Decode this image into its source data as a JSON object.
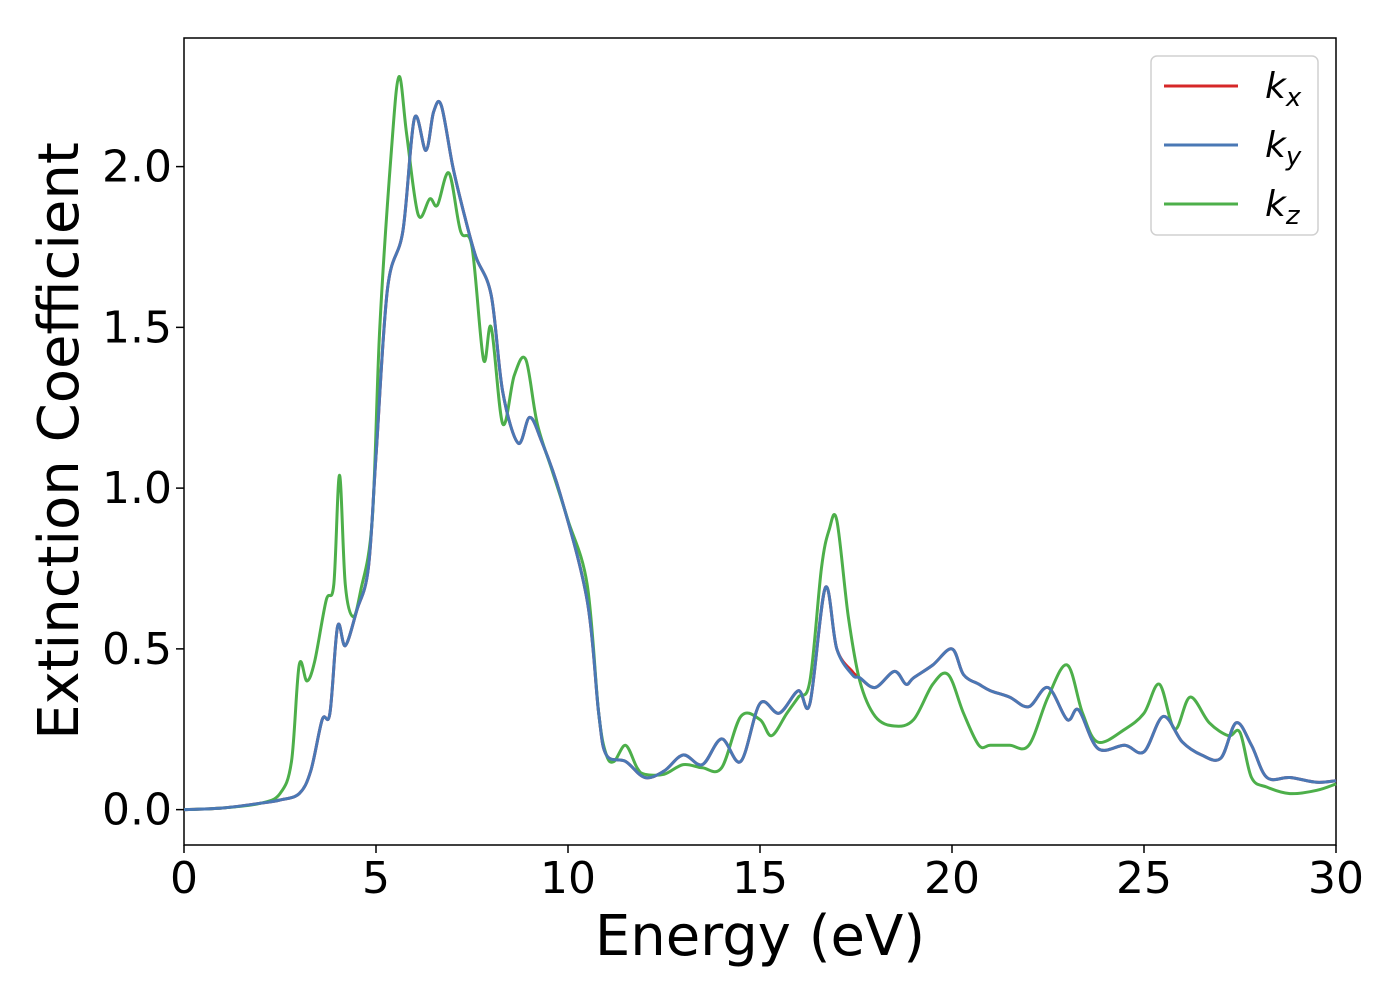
{
  "chart_data": {
    "type": "line",
    "xlabel": "Energy (eV)",
    "ylabel": "Extinction Coefficient",
    "xlim": [
      0,
      30
    ],
    "ylim": [
      -0.11,
      2.4
    ],
    "xticks": [
      0,
      5,
      10,
      15,
      20,
      25,
      30
    ],
    "xtick_labels": [
      "0",
      "5",
      "10",
      "15",
      "20",
      "25",
      "30"
    ],
    "yticks": [
      0.0,
      0.5,
      1.0,
      1.5,
      2.0
    ],
    "ytick_labels": [
      "0.0",
      "0.5",
      "1.0",
      "1.5",
      "2.0"
    ],
    "grid": false,
    "legend_position": "top-right",
    "series": [
      {
        "name": "k",
        "subscript": "x",
        "color": "#d62728",
        "points": [
          [
            0,
            0
          ],
          [
            1,
            0.005
          ],
          [
            2,
            0.02
          ],
          [
            2.5,
            0.03
          ],
          [
            3,
            0.05
          ],
          [
            3.3,
            0.12
          ],
          [
            3.6,
            0.28
          ],
          [
            3.8,
            0.3
          ],
          [
            4.0,
            0.57
          ],
          [
            4.2,
            0.51
          ],
          [
            4.5,
            0.62
          ],
          [
            4.8,
            0.75
          ],
          [
            5.0,
            1.1
          ],
          [
            5.3,
            1.62
          ],
          [
            5.7,
            1.8
          ],
          [
            6.0,
            2.15
          ],
          [
            6.3,
            2.05
          ],
          [
            6.5,
            2.17
          ],
          [
            6.7,
            2.19
          ],
          [
            7.0,
            2.0
          ],
          [
            7.3,
            1.85
          ],
          [
            7.6,
            1.72
          ],
          [
            8.0,
            1.6
          ],
          [
            8.3,
            1.3
          ],
          [
            8.7,
            1.14
          ],
          [
            9.0,
            1.22
          ],
          [
            9.3,
            1.15
          ],
          [
            9.8,
            0.98
          ],
          [
            10.5,
            0.65
          ],
          [
            10.8,
            0.3
          ],
          [
            11.0,
            0.17
          ],
          [
            11.5,
            0.15
          ],
          [
            12.0,
            0.1
          ],
          [
            12.5,
            0.12
          ],
          [
            13.0,
            0.17
          ],
          [
            13.5,
            0.14
          ],
          [
            14.0,
            0.22
          ],
          [
            14.5,
            0.15
          ],
          [
            15.0,
            0.33
          ],
          [
            15.5,
            0.3
          ],
          [
            16.0,
            0.37
          ],
          [
            16.3,
            0.33
          ],
          [
            16.7,
            0.69
          ],
          [
            17.0,
            0.5
          ],
          [
            17.4,
            0.43
          ],
          [
            17.6,
            0.41
          ],
          [
            18.0,
            0.38
          ],
          [
            18.5,
            0.43
          ],
          [
            18.8,
            0.39
          ],
          [
            19.0,
            0.41
          ],
          [
            19.5,
            0.45
          ],
          [
            20.0,
            0.5
          ],
          [
            20.3,
            0.42
          ],
          [
            20.7,
            0.39
          ],
          [
            21.0,
            0.37
          ],
          [
            21.5,
            0.35
          ],
          [
            22.0,
            0.32
          ],
          [
            22.5,
            0.38
          ],
          [
            23.0,
            0.28
          ],
          [
            23.3,
            0.31
          ],
          [
            23.8,
            0.19
          ],
          [
            24.5,
            0.2
          ],
          [
            25.0,
            0.18
          ],
          [
            25.5,
            0.29
          ],
          [
            26.0,
            0.21
          ],
          [
            26.5,
            0.17
          ],
          [
            27.0,
            0.16
          ],
          [
            27.4,
            0.27
          ],
          [
            27.8,
            0.2
          ],
          [
            28.2,
            0.1
          ],
          [
            28.8,
            0.1
          ],
          [
            29.5,
            0.085
          ],
          [
            30,
            0.09
          ]
        ]
      },
      {
        "name": "k",
        "subscript": "y",
        "color": "#4a78b5",
        "points": [
          [
            0,
            0
          ],
          [
            1,
            0.005
          ],
          [
            2,
            0.02
          ],
          [
            2.5,
            0.03
          ],
          [
            3,
            0.05
          ],
          [
            3.3,
            0.12
          ],
          [
            3.6,
            0.28
          ],
          [
            3.8,
            0.3
          ],
          [
            4.0,
            0.57
          ],
          [
            4.2,
            0.51
          ],
          [
            4.5,
            0.62
          ],
          [
            4.8,
            0.75
          ],
          [
            5.0,
            1.1
          ],
          [
            5.3,
            1.62
          ],
          [
            5.7,
            1.8
          ],
          [
            6.0,
            2.15
          ],
          [
            6.3,
            2.05
          ],
          [
            6.5,
            2.17
          ],
          [
            6.7,
            2.19
          ],
          [
            7.0,
            2.0
          ],
          [
            7.3,
            1.85
          ],
          [
            7.6,
            1.72
          ],
          [
            8.0,
            1.6
          ],
          [
            8.3,
            1.3
          ],
          [
            8.7,
            1.14
          ],
          [
            9.0,
            1.22
          ],
          [
            9.3,
            1.15
          ],
          [
            9.8,
            0.98
          ],
          [
            10.5,
            0.65
          ],
          [
            10.8,
            0.3
          ],
          [
            11.0,
            0.17
          ],
          [
            11.5,
            0.15
          ],
          [
            12.0,
            0.1
          ],
          [
            12.5,
            0.12
          ],
          [
            13.0,
            0.17
          ],
          [
            13.5,
            0.14
          ],
          [
            14.0,
            0.22
          ],
          [
            14.5,
            0.15
          ],
          [
            15.0,
            0.33
          ],
          [
            15.5,
            0.3
          ],
          [
            16.0,
            0.37
          ],
          [
            16.3,
            0.33
          ],
          [
            16.7,
            0.69
          ],
          [
            17.0,
            0.5
          ],
          [
            17.4,
            0.42
          ],
          [
            17.6,
            0.41
          ],
          [
            18.0,
            0.38
          ],
          [
            18.5,
            0.43
          ],
          [
            18.8,
            0.39
          ],
          [
            19.0,
            0.41
          ],
          [
            19.5,
            0.45
          ],
          [
            20.0,
            0.5
          ],
          [
            20.3,
            0.42
          ],
          [
            20.7,
            0.39
          ],
          [
            21.0,
            0.37
          ],
          [
            21.5,
            0.35
          ],
          [
            22.0,
            0.32
          ],
          [
            22.5,
            0.38
          ],
          [
            23.0,
            0.28
          ],
          [
            23.3,
            0.31
          ],
          [
            23.8,
            0.19
          ],
          [
            24.5,
            0.2
          ],
          [
            25.0,
            0.18
          ],
          [
            25.5,
            0.29
          ],
          [
            26.0,
            0.21
          ],
          [
            26.5,
            0.17
          ],
          [
            27.0,
            0.16
          ],
          [
            27.4,
            0.27
          ],
          [
            27.8,
            0.2
          ],
          [
            28.2,
            0.1
          ],
          [
            28.8,
            0.1
          ],
          [
            29.5,
            0.085
          ],
          [
            30,
            0.09
          ]
        ]
      },
      {
        "name": "k",
        "subscript": "z",
        "color": "#4daf4a",
        "points": [
          [
            0,
            0
          ],
          [
            1,
            0.005
          ],
          [
            2,
            0.02
          ],
          [
            2.5,
            0.05
          ],
          [
            2.8,
            0.15
          ],
          [
            3.0,
            0.45
          ],
          [
            3.2,
            0.4
          ],
          [
            3.4,
            0.46
          ],
          [
            3.7,
            0.65
          ],
          [
            3.9,
            0.7
          ],
          [
            4.05,
            1.04
          ],
          [
            4.2,
            0.7
          ],
          [
            4.4,
            0.6
          ],
          [
            4.6,
            0.68
          ],
          [
            4.9,
            0.9
          ],
          [
            5.1,
            1.5
          ],
          [
            5.4,
            2.05
          ],
          [
            5.6,
            2.28
          ],
          [
            5.8,
            2.1
          ],
          [
            6.1,
            1.85
          ],
          [
            6.4,
            1.9
          ],
          [
            6.6,
            1.88
          ],
          [
            6.9,
            1.98
          ],
          [
            7.2,
            1.8
          ],
          [
            7.5,
            1.75
          ],
          [
            7.8,
            1.4
          ],
          [
            8.0,
            1.5
          ],
          [
            8.3,
            1.2
          ],
          [
            8.6,
            1.35
          ],
          [
            8.9,
            1.4
          ],
          [
            9.2,
            1.2
          ],
          [
            9.6,
            1.05
          ],
          [
            10.0,
            0.9
          ],
          [
            10.5,
            0.7
          ],
          [
            10.8,
            0.3
          ],
          [
            11.0,
            0.17
          ],
          [
            11.2,
            0.15
          ],
          [
            11.5,
            0.2
          ],
          [
            11.8,
            0.13
          ],
          [
            12.0,
            0.11
          ],
          [
            12.5,
            0.11
          ],
          [
            13.0,
            0.14
          ],
          [
            13.5,
            0.13
          ],
          [
            14.0,
            0.13
          ],
          [
            14.5,
            0.29
          ],
          [
            15.0,
            0.28
          ],
          [
            15.3,
            0.23
          ],
          [
            15.7,
            0.3
          ],
          [
            16.0,
            0.35
          ],
          [
            16.3,
            0.4
          ],
          [
            16.6,
            0.75
          ],
          [
            16.8,
            0.87
          ],
          [
            17.0,
            0.9
          ],
          [
            17.3,
            0.6
          ],
          [
            17.6,
            0.4
          ],
          [
            18.0,
            0.29
          ],
          [
            18.5,
            0.26
          ],
          [
            19.0,
            0.28
          ],
          [
            19.5,
            0.39
          ],
          [
            19.9,
            0.42
          ],
          [
            20.3,
            0.3
          ],
          [
            20.7,
            0.2
          ],
          [
            21.0,
            0.2
          ],
          [
            21.5,
            0.2
          ],
          [
            22.0,
            0.2
          ],
          [
            22.5,
            0.35
          ],
          [
            23.0,
            0.45
          ],
          [
            23.4,
            0.3
          ],
          [
            23.8,
            0.21
          ],
          [
            24.5,
            0.25
          ],
          [
            25.0,
            0.3
          ],
          [
            25.4,
            0.39
          ],
          [
            25.8,
            0.25
          ],
          [
            26.2,
            0.35
          ],
          [
            26.7,
            0.27
          ],
          [
            27.2,
            0.23
          ],
          [
            27.5,
            0.24
          ],
          [
            27.8,
            0.1
          ],
          [
            28.2,
            0.07
          ],
          [
            28.8,
            0.05
          ],
          [
            29.5,
            0.06
          ],
          [
            30,
            0.08
          ]
        ]
      }
    ]
  }
}
